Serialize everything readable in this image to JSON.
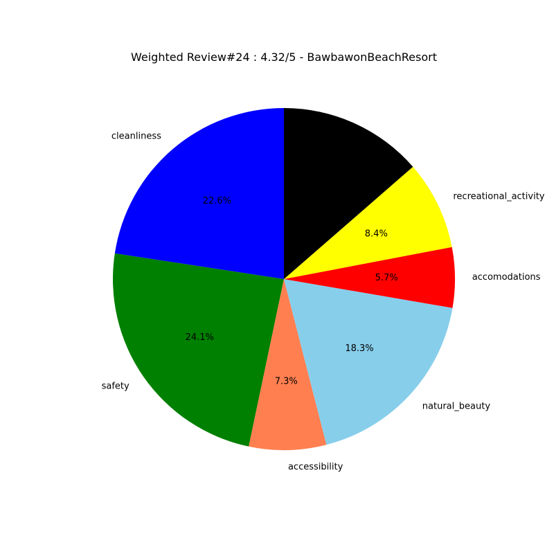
{
  "chart_data": {
    "type": "pie",
    "title": "Weighted Review#24 : 4.32/5 - BawbawonBeachResort",
    "slices": [
      {
        "label": "cleanliness",
        "value": 22.6,
        "pct_label": "22.6%",
        "color": "#0000ff"
      },
      {
        "label": "safety",
        "value": 24.1,
        "pct_label": "24.1%",
        "color": "#008000"
      },
      {
        "label": "accessibility",
        "value": 7.3,
        "pct_label": "7.3%",
        "color": "#ff7f50"
      },
      {
        "label": "natural_beauty",
        "value": 18.3,
        "pct_label": "18.3%",
        "color": "#87ceeb"
      },
      {
        "label": "accomodations",
        "value": 5.7,
        "pct_label": "5.7%",
        "color": "#ff0000"
      },
      {
        "label": "recreational_activity",
        "value": 8.4,
        "pct_label": "8.4%",
        "color": "#ffff00"
      },
      {
        "label": "",
        "value": 13.6,
        "pct_label": "",
        "color": "#000000"
      }
    ],
    "start_angle_deg": 90,
    "direction": "counterclockwise",
    "legend": "none"
  }
}
